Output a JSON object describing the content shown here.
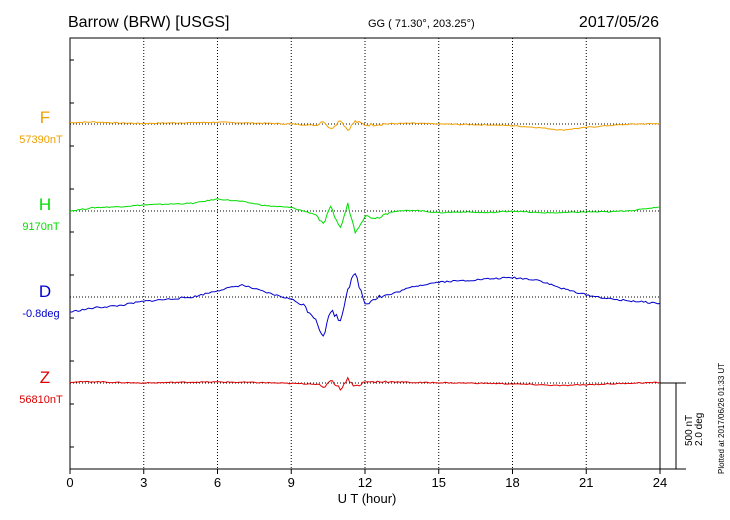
{
  "header": {
    "station": "Barrow (BRW)  [USGS]",
    "coords": "GG ( 71.30°, 203.25°)",
    "date": "2017/05/26"
  },
  "plotted_at": "Plotted at 2017/06/26 01:33 UT",
  "scale_labels": [
    "500 nT",
    "2.0 deg"
  ],
  "colors": {
    "F": "#f0a000",
    "H": "#00dd00",
    "D": "#0000cc",
    "Z": "#dd0000",
    "axis": "#000000"
  },
  "chart_data": {
    "type": "line",
    "xlabel": "U T (hour)",
    "xlim": [
      0,
      24
    ],
    "xticks": [
      "0",
      "3",
      "6",
      "9",
      "12",
      "15",
      "18",
      "21",
      "24"
    ],
    "grid": true,
    "scale": {
      "nT_per_bar": 500,
      "deg_per_bar": 2.0
    },
    "series": [
      {
        "name": "F",
        "baseline_label": "57390nT",
        "unit": "nT",
        "x": [
          0,
          1,
          2,
          3,
          4,
          5,
          6,
          7,
          8,
          9,
          10,
          10.3,
          10.6,
          11,
          11.3,
          11.6,
          12,
          13,
          14,
          15,
          16,
          17,
          18,
          19,
          20,
          21,
          22,
          23,
          24
        ],
        "values": [
          8,
          12,
          6,
          3,
          6,
          8,
          10,
          7,
          4,
          0,
          -8,
          20,
          -30,
          25,
          -35,
          15,
          -5,
          2,
          4,
          0,
          -3,
          -5,
          -10,
          -20,
          -35,
          -20,
          -8,
          0,
          2
        ]
      },
      {
        "name": "H",
        "baseline_label": "9170nT",
        "unit": "nT",
        "x": [
          0,
          1,
          2,
          3,
          4,
          5,
          6,
          7,
          8,
          9,
          10,
          10.3,
          10.6,
          11,
          11.3,
          11.6,
          12,
          12.5,
          13,
          14,
          15,
          16,
          17,
          18,
          19,
          20,
          21,
          22,
          23,
          24
        ],
        "values": [
          0,
          20,
          25,
          35,
          40,
          45,
          70,
          55,
          30,
          20,
          -20,
          -80,
          20,
          -100,
          40,
          -120,
          -30,
          -40,
          -5,
          5,
          -10,
          -5,
          -10,
          0,
          -10,
          -10,
          -5,
          -5,
          5,
          25
        ]
      },
      {
        "name": "D",
        "baseline_label": "-0.8deg",
        "unit": "deg",
        "x": [
          0,
          1,
          2,
          3,
          4,
          5,
          6,
          7,
          8,
          9,
          9.5,
          10,
          10.3,
          10.6,
          11,
          11.3,
          11.6,
          12,
          12.5,
          13,
          14,
          15,
          16,
          17,
          18,
          19,
          20,
          21,
          22,
          23,
          24
        ],
        "values": [
          -0.35,
          -0.25,
          -0.2,
          -0.1,
          -0.05,
          0.0,
          0.15,
          0.28,
          0.1,
          -0.05,
          -0.2,
          -0.5,
          -0.95,
          -0.3,
          -0.55,
          0.2,
          0.55,
          -0.15,
          0.0,
          0.05,
          0.25,
          0.35,
          0.38,
          0.42,
          0.45,
          0.4,
          0.2,
          0.05,
          -0.05,
          -0.1,
          -0.15
        ]
      },
      {
        "name": "Z",
        "baseline_label": "56810nT",
        "unit": "nT",
        "x": [
          0,
          1,
          2,
          3,
          4,
          5,
          6,
          7,
          8,
          9,
          10,
          10.3,
          10.6,
          11,
          11.3,
          11.6,
          12,
          13,
          14,
          15,
          16,
          17,
          18,
          19,
          20,
          21,
          22,
          23,
          24
        ],
        "values": [
          5,
          8,
          3,
          0,
          3,
          5,
          6,
          4,
          2,
          -3,
          -5,
          -30,
          20,
          -35,
          25,
          -20,
          5,
          8,
          3,
          2,
          0,
          -2,
          -5,
          -10,
          -15,
          -10,
          -5,
          0,
          3
        ]
      }
    ]
  }
}
